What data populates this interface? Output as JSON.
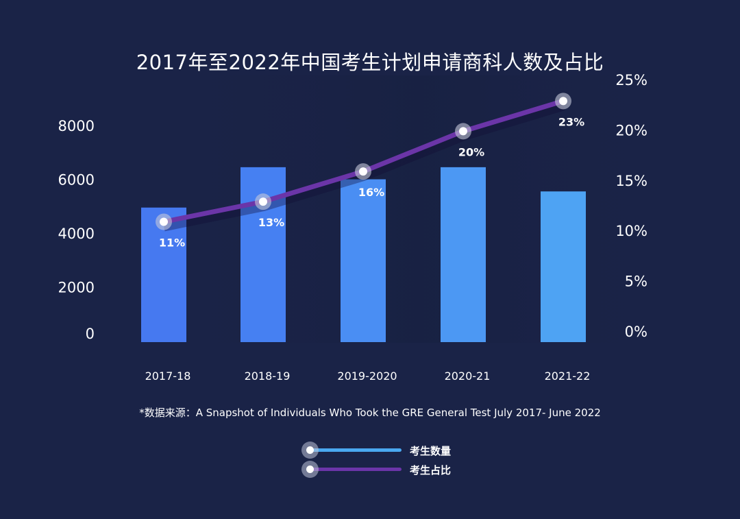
{
  "chart_data": {
    "type": "bar+line",
    "title": "2017年至2022年中国考生计划申请商科人数及占比",
    "categories": [
      "2017-18",
      "2018-19",
      "2019-2020",
      "2020-21",
      "2021-22"
    ],
    "series": [
      {
        "name": "考生数量",
        "type": "bar",
        "axis": "left",
        "values": [
          5000,
          6500,
          6050,
          6500,
          5600
        ],
        "color": "#4a8cf5"
      },
      {
        "name": "考生占比",
        "type": "line",
        "axis": "right",
        "values": [
          11,
          13,
          16,
          20,
          23
        ],
        "labels": [
          "11%",
          "13%",
          "16%",
          "20%",
          "23%"
        ],
        "color": "#6b35a8"
      }
    ],
    "y_left": {
      "ticks": [
        "0",
        "2000",
        "4000",
        "6000",
        "8000"
      ],
      "range": [
        0,
        8000
      ]
    },
    "y_right": {
      "ticks": [
        "0%",
        "5%",
        "10%",
        "15%",
        "20%",
        "25%"
      ],
      "range": [
        0,
        25
      ]
    },
    "grid": false,
    "legend_position": "bottom-center"
  },
  "source_note": "*数据来源：A Snapshot of Individuals Who Took the GRE General Test July 2017- June 2022",
  "legend": [
    {
      "label": "考生数量",
      "color": "#4aa8f0"
    },
    {
      "label": "考生占比",
      "color": "#6b35a8"
    }
  ]
}
